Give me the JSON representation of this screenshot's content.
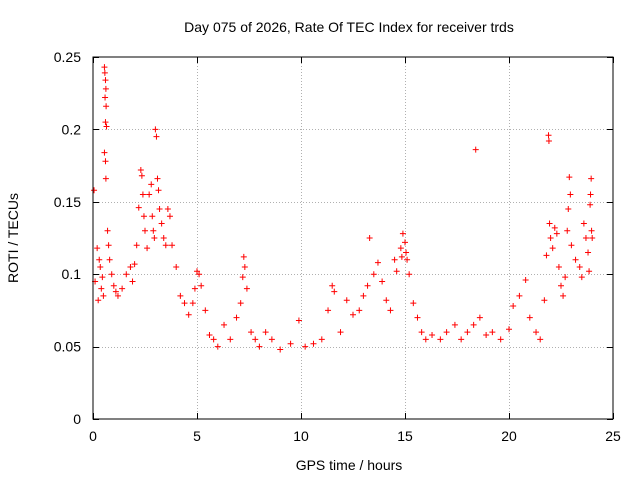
{
  "chart_data": {
    "type": "scatter",
    "title": "Day 075 of 2026, Rate Of TEC Index for receiver trds",
    "xlabel": "GPS time / hours",
    "ylabel": "ROTI / TECUs",
    "xlim": [
      0,
      25
    ],
    "ylim": [
      0,
      0.25
    ],
    "xticks": [
      0,
      5,
      10,
      15,
      20,
      25
    ],
    "xtick_labels": [
      "0",
      "5",
      "10",
      "15",
      "20",
      "25"
    ],
    "yticks": [
      0,
      0.05,
      0.1,
      0.15,
      0.2,
      0.25
    ],
    "ytick_labels": [
      "0",
      "0.05",
      "0.1",
      "0.15",
      "0.2",
      "0.25"
    ],
    "grid": true,
    "marker": "+",
    "series": [
      {
        "name": "ROTI",
        "color": "#ff0000",
        "points": [
          [
            0.05,
            0.158
          ],
          [
            0.1,
            0.095
          ],
          [
            0.2,
            0.118
          ],
          [
            0.25,
            0.082
          ],
          [
            0.3,
            0.11
          ],
          [
            0.35,
            0.105
          ],
          [
            0.4,
            0.09
          ],
          [
            0.45,
            0.098
          ],
          [
            0.5,
            0.085
          ],
          [
            0.55,
            0.243
          ],
          [
            0.57,
            0.239
          ],
          [
            0.6,
            0.234
          ],
          [
            0.62,
            0.228
          ],
          [
            0.58,
            0.222
          ],
          [
            0.63,
            0.216
          ],
          [
            0.6,
            0.205
          ],
          [
            0.65,
            0.202
          ],
          [
            0.55,
            0.184
          ],
          [
            0.6,
            0.178
          ],
          [
            0.62,
            0.166
          ],
          [
            0.7,
            0.13
          ],
          [
            0.75,
            0.12
          ],
          [
            0.8,
            0.11
          ],
          [
            0.9,
            0.1
          ],
          [
            1.0,
            0.092
          ],
          [
            1.1,
            0.088
          ],
          [
            1.2,
            0.085
          ],
          [
            1.4,
            0.09
          ],
          [
            1.6,
            0.1
          ],
          [
            1.8,
            0.105
          ],
          [
            1.9,
            0.095
          ],
          [
            2.0,
            0.107
          ],
          [
            2.1,
            0.12
          ],
          [
            2.2,
            0.146
          ],
          [
            2.3,
            0.172
          ],
          [
            2.35,
            0.168
          ],
          [
            2.4,
            0.155
          ],
          [
            2.45,
            0.14
          ],
          [
            2.5,
            0.13
          ],
          [
            2.6,
            0.118
          ],
          [
            2.7,
            0.155
          ],
          [
            2.8,
            0.162
          ],
          [
            2.85,
            0.14
          ],
          [
            2.9,
            0.13
          ],
          [
            2.95,
            0.125
          ],
          [
            3.0,
            0.2
          ],
          [
            3.05,
            0.195
          ],
          [
            3.1,
            0.166
          ],
          [
            3.15,
            0.158
          ],
          [
            3.2,
            0.145
          ],
          [
            3.3,
            0.135
          ],
          [
            3.4,
            0.125
          ],
          [
            3.5,
            0.12
          ],
          [
            3.6,
            0.145
          ],
          [
            3.7,
            0.14
          ],
          [
            3.8,
            0.12
          ],
          [
            4.0,
            0.105
          ],
          [
            4.2,
            0.085
          ],
          [
            4.4,
            0.08
          ],
          [
            4.6,
            0.072
          ],
          [
            4.8,
            0.08
          ],
          [
            4.9,
            0.09
          ],
          [
            5.0,
            0.102
          ],
          [
            5.1,
            0.1
          ],
          [
            5.2,
            0.092
          ],
          [
            5.4,
            0.075
          ],
          [
            5.6,
            0.058
          ],
          [
            5.8,
            0.055
          ],
          [
            6.0,
            0.05
          ],
          [
            6.3,
            0.065
          ],
          [
            6.6,
            0.055
          ],
          [
            6.9,
            0.07
          ],
          [
            7.1,
            0.08
          ],
          [
            7.2,
            0.098
          ],
          [
            7.25,
            0.112
          ],
          [
            7.3,
            0.105
          ],
          [
            7.4,
            0.09
          ],
          [
            7.6,
            0.06
          ],
          [
            7.8,
            0.055
          ],
          [
            8.0,
            0.05
          ],
          [
            8.3,
            0.06
          ],
          [
            8.6,
            0.055
          ],
          [
            9.0,
            0.048
          ],
          [
            9.5,
            0.052
          ],
          [
            9.9,
            0.068
          ],
          [
            10.2,
            0.05
          ],
          [
            10.6,
            0.052
          ],
          [
            11.0,
            0.055
          ],
          [
            11.3,
            0.075
          ],
          [
            11.5,
            0.092
          ],
          [
            11.6,
            0.088
          ],
          [
            11.9,
            0.06
          ],
          [
            12.2,
            0.082
          ],
          [
            12.5,
            0.072
          ],
          [
            12.8,
            0.075
          ],
          [
            13.0,
            0.085
          ],
          [
            13.2,
            0.092
          ],
          [
            13.3,
            0.125
          ],
          [
            13.5,
            0.1
          ],
          [
            13.7,
            0.108
          ],
          [
            13.9,
            0.095
          ],
          [
            14.1,
            0.082
          ],
          [
            14.3,
            0.075
          ],
          [
            14.5,
            0.11
          ],
          [
            14.6,
            0.102
          ],
          [
            14.8,
            0.118
          ],
          [
            14.85,
            0.112
          ],
          [
            14.9,
            0.128
          ],
          [
            15.0,
            0.122
          ],
          [
            15.05,
            0.115
          ],
          [
            15.1,
            0.11
          ],
          [
            15.2,
            0.1
          ],
          [
            15.4,
            0.08
          ],
          [
            15.6,
            0.07
          ],
          [
            15.8,
            0.06
          ],
          [
            16.0,
            0.055
          ],
          [
            16.3,
            0.058
          ],
          [
            16.7,
            0.055
          ],
          [
            17.0,
            0.06
          ],
          [
            17.4,
            0.065
          ],
          [
            17.7,
            0.055
          ],
          [
            18.0,
            0.06
          ],
          [
            18.3,
            0.065
          ],
          [
            18.4,
            0.186
          ],
          [
            18.6,
            0.07
          ],
          [
            18.9,
            0.058
          ],
          [
            19.2,
            0.06
          ],
          [
            19.6,
            0.055
          ],
          [
            20.0,
            0.062
          ],
          [
            20.2,
            0.078
          ],
          [
            20.5,
            0.085
          ],
          [
            20.8,
            0.096
          ],
          [
            21.0,
            0.07
          ],
          [
            21.3,
            0.06
          ],
          [
            21.5,
            0.055
          ],
          [
            21.7,
            0.082
          ],
          [
            21.8,
            0.113
          ],
          [
            21.9,
            0.196
          ],
          [
            21.92,
            0.192
          ],
          [
            21.95,
            0.135
          ],
          [
            22.0,
            0.125
          ],
          [
            22.1,
            0.118
          ],
          [
            22.2,
            0.132
          ],
          [
            22.3,
            0.128
          ],
          [
            22.4,
            0.105
          ],
          [
            22.5,
            0.092
          ],
          [
            22.6,
            0.085
          ],
          [
            22.7,
            0.098
          ],
          [
            22.8,
            0.13
          ],
          [
            22.85,
            0.145
          ],
          [
            22.9,
            0.167
          ],
          [
            22.95,
            0.155
          ],
          [
            23.0,
            0.12
          ],
          [
            23.2,
            0.11
          ],
          [
            23.4,
            0.105
          ],
          [
            23.5,
            0.098
          ],
          [
            23.6,
            0.135
          ],
          [
            23.7,
            0.125
          ],
          [
            23.8,
            0.115
          ],
          [
            23.85,
            0.102
          ],
          [
            23.9,
            0.148
          ],
          [
            23.92,
            0.155
          ],
          [
            23.95,
            0.166
          ],
          [
            23.97,
            0.13
          ],
          [
            24.0,
            0.125
          ]
        ]
      }
    ]
  }
}
